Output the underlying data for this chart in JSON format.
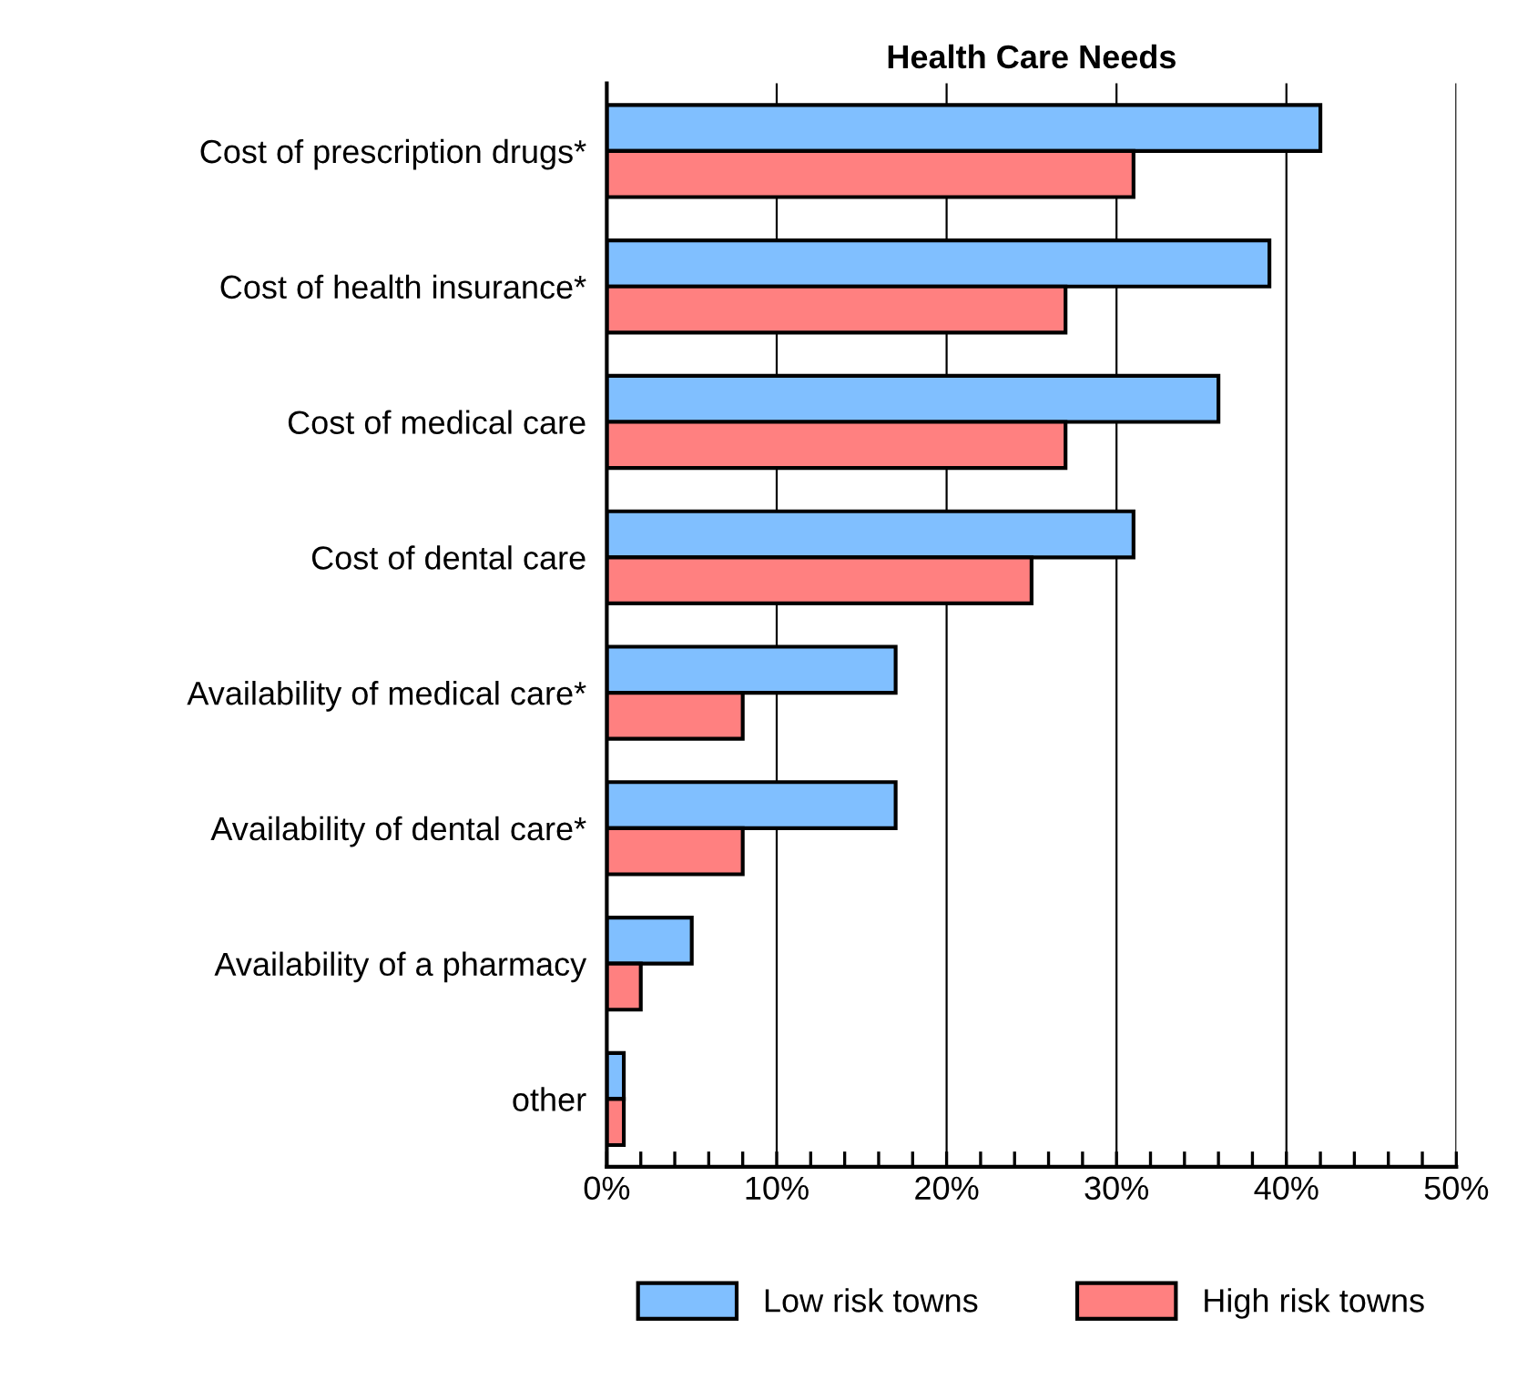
{
  "chart_data": {
    "type": "bar",
    "orientation": "horizontal",
    "title": "Health Care Needs",
    "categories": [
      "Cost of prescription drugs*",
      "Cost of health insurance*",
      "Cost of medical care",
      "Cost of dental care",
      "Availability of medical care*",
      "Availability of dental care*",
      "Availability of a pharmacy",
      "other"
    ],
    "series": [
      {
        "name": "Low risk towns",
        "color": "#80bfff",
        "values": [
          42,
          39,
          36,
          31,
          17,
          17,
          5,
          1
        ]
      },
      {
        "name": "High risk towns",
        "color": "#ff8080",
        "values": [
          31,
          27,
          27,
          25,
          8,
          8,
          2,
          1
        ]
      }
    ],
    "xlim": [
      0,
      50
    ],
    "xticks": [
      {
        "value": 0,
        "label": "0%"
      },
      {
        "value": 2,
        "label": null
      },
      {
        "value": 4,
        "label": null
      },
      {
        "value": 6,
        "label": null
      },
      {
        "value": 8,
        "label": null
      },
      {
        "value": 10,
        "label": "10%"
      },
      {
        "value": 12,
        "label": null
      },
      {
        "value": 14,
        "label": null
      },
      {
        "value": 16,
        "label": null
      },
      {
        "value": 18,
        "label": null
      },
      {
        "value": 20,
        "label": "20%"
      },
      {
        "value": 22,
        "label": null
      },
      {
        "value": 24,
        "label": null
      },
      {
        "value": 26,
        "label": null
      },
      {
        "value": 28,
        "label": null
      },
      {
        "value": 30,
        "label": "30%"
      },
      {
        "value": 32,
        "label": null
      },
      {
        "value": 34,
        "label": null
      },
      {
        "value": 36,
        "label": null
      },
      {
        "value": 38,
        "label": null
      },
      {
        "value": 40,
        "label": "40%"
      },
      {
        "value": 42,
        "label": null
      },
      {
        "value": 44,
        "label": null
      },
      {
        "value": 46,
        "label": null
      },
      {
        "value": 48,
        "label": null
      },
      {
        "value": 50,
        "label": "50%"
      }
    ],
    "grid": "x",
    "legend": "bottom"
  }
}
